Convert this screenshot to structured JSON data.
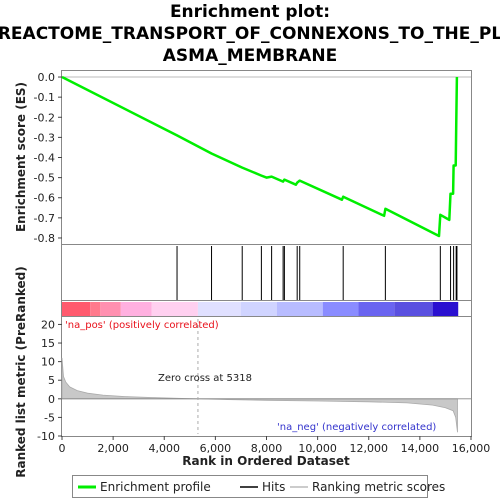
{
  "chart_data": {
    "type": "line",
    "title_lines": [
      "Enrichment plot:",
      "REACTOME_TRANSPORT_OF_CONNEXONS_TO_THE_PL",
      "ASMA_MEMBRANE"
    ],
    "es_panel": {
      "ylabel": "Enrichment score (ES)",
      "yticks": [
        0.0,
        -0.1,
        -0.2,
        -0.3,
        -0.4,
        -0.5,
        -0.6,
        -0.7,
        -0.8
      ],
      "ytick_labels": [
        "0.0",
        "-0.1",
        "-0.2",
        "-0.3",
        "-0.4",
        "-0.5",
        "-0.6",
        "-0.7",
        "-0.8"
      ],
      "ylim": [
        -0.83,
        0.03
      ],
      "series": [
        {
          "name": "Enrichment profile",
          "color": "#00ee00",
          "points": [
            [
              0,
              0.0
            ],
            [
              4500,
              -0.29
            ],
            [
              5850,
              -0.38
            ],
            [
              7050,
              -0.45
            ],
            [
              7800,
              -0.49
            ],
            [
              8000,
              -0.5
            ],
            [
              8200,
              -0.495
            ],
            [
              8650,
              -0.52
            ],
            [
              8700,
              -0.51
            ],
            [
              9150,
              -0.535
            ],
            [
              9200,
              -0.525
            ],
            [
              9300,
              -0.515
            ],
            [
              10950,
              -0.61
            ],
            [
              11000,
              -0.595
            ],
            [
              12600,
              -0.69
            ],
            [
              12650,
              -0.655
            ],
            [
              14750,
              -0.79
            ],
            [
              14800,
              -0.685
            ],
            [
              15150,
              -0.71
            ],
            [
              15200,
              -0.58
            ],
            [
              15300,
              -0.58
            ],
            [
              15320,
              -0.44
            ],
            [
              15400,
              -0.44
            ],
            [
              15420,
              -0.25
            ],
            [
              15450,
              0.0
            ]
          ]
        }
      ]
    },
    "hits": {
      "name": "Hits",
      "positions": [
        4500,
        5850,
        7050,
        7800,
        8200,
        8650,
        8700,
        9200,
        9300,
        11000,
        12650,
        14800,
        15200,
        15320,
        15420,
        15450
      ]
    },
    "metric_panel": {
      "ylabel": "Ranked list metric (PreRanked)",
      "yticks": [
        20,
        15,
        10,
        5,
        0,
        -5,
        -10
      ],
      "ytick_labels": [
        "20",
        "15",
        "10",
        "5",
        "0",
        "-5",
        "-10"
      ],
      "ylim": [
        -10,
        22
      ],
      "zero_cross_label": "Zero cross at 5318",
      "zero_cross": 5318,
      "pos_label": "'na_pos' (positively correlated)",
      "neg_label": "'na_neg' (negatively correlated)",
      "series_name": "Ranking metric scores",
      "profile": [
        [
          0,
          11
        ],
        [
          60,
          6
        ],
        [
          150,
          4.5
        ],
        [
          300,
          3.2
        ],
        [
          600,
          2.2
        ],
        [
          1000,
          1.5
        ],
        [
          1600,
          1.0
        ],
        [
          2500,
          0.6
        ],
        [
          3500,
          0.35
        ],
        [
          4500,
          0.15
        ],
        [
          5318,
          0.0
        ],
        [
          6500,
          -0.2
        ],
        [
          8000,
          -0.4
        ],
        [
          10000,
          -0.6
        ],
        [
          12000,
          -0.8
        ],
        [
          13500,
          -1.1
        ],
        [
          14500,
          -1.7
        ],
        [
          15000,
          -2.4
        ],
        [
          15300,
          -3.2
        ],
        [
          15400,
          -5.0
        ],
        [
          15470,
          -9.0
        ]
      ]
    },
    "xaxis": {
      "label": "Rank in Ordered Dataset",
      "ticks": [
        0,
        2000,
        4000,
        6000,
        8000,
        10000,
        12000,
        14000,
        16000
      ],
      "tick_labels": [
        "0",
        "2,000",
        "4,000",
        "6,000",
        "8,000",
        "10,000",
        "12,000",
        "14,000",
        "16,000"
      ],
      "xlim": [
        0,
        16000
      ]
    },
    "colorbar": {
      "segments": [
        {
          "from": 0,
          "to": 1100,
          "color": "#ff5a6e"
        },
        {
          "from": 1100,
          "to": 1500,
          "color": "#ff7a8c"
        },
        {
          "from": 1500,
          "to": 2300,
          "color": "#ff90b0"
        },
        {
          "from": 2300,
          "to": 3500,
          "color": "#ffb0e0"
        },
        {
          "from": 3500,
          "to": 5318,
          "color": "#ffd0f0"
        },
        {
          "from": 5318,
          "to": 7000,
          "color": "#e0e0ff"
        },
        {
          "from": 7000,
          "to": 8400,
          "color": "#d0d4ff"
        },
        {
          "from": 8400,
          "to": 10200,
          "color": "#b8bcff"
        },
        {
          "from": 10200,
          "to": 11600,
          "color": "#8a8cff"
        },
        {
          "from": 11600,
          "to": 13000,
          "color": "#6a64f0"
        },
        {
          "from": 13000,
          "to": 14500,
          "color": "#5a50e0"
        },
        {
          "from": 14500,
          "to": 15500,
          "color": "#2a10d0"
        }
      ]
    },
    "legend": [
      {
        "label": "Enrichment profile",
        "color": "#00ee00"
      },
      {
        "label": "Hits",
        "color": "#000000"
      },
      {
        "label": "Ranking metric scores",
        "color": "#bbbbbb"
      }
    ]
  }
}
